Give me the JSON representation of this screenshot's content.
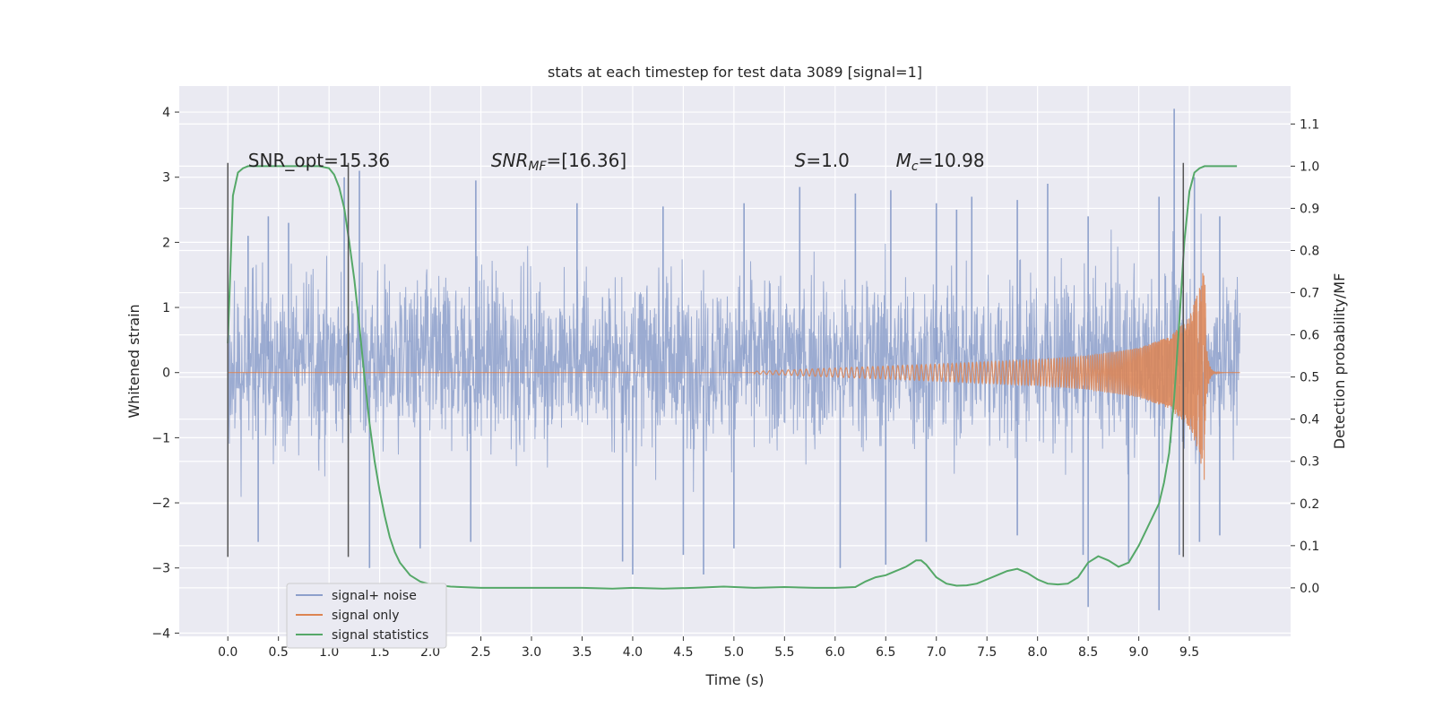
{
  "chart_data": {
    "type": "line",
    "title": "stats at each timestep for test data 3089 [signal=1]",
    "xlabel": "Time (s)",
    "ylabel": "Whitened strain",
    "ylabel_right": "Detection probability/MF",
    "xlim": [
      -0.48,
      10.5
    ],
    "ylim": [
      -4.05,
      4.4
    ],
    "ylim_right": [
      -0.115,
      1.19
    ],
    "xticks": [
      0.0,
      0.5,
      1.0,
      1.5,
      2.0,
      2.5,
      3.0,
      3.5,
      4.0,
      4.5,
      5.0,
      5.5,
      6.0,
      6.5,
      7.0,
      7.5,
      8.0,
      8.5,
      9.0,
      9.5
    ],
    "xtick_labels": [
      "0.0",
      "0.5",
      "1.0",
      "1.5",
      "2.0",
      "2.5",
      "3.0",
      "3.5",
      "4.0",
      "4.5",
      "5.0",
      "5.5",
      "6.0",
      "6.5",
      "7.0",
      "7.5",
      "8.0",
      "8.5",
      "9.0",
      "9.5"
    ],
    "yticks": [
      4,
      3,
      2,
      1,
      0,
      -1,
      -2,
      -3,
      -4
    ],
    "ytick_labels": [
      "4",
      "3",
      "2",
      "1",
      "0",
      "−1",
      "−2",
      "−3",
      "−4"
    ],
    "yticks_right": [
      1.1,
      1.0,
      0.9,
      0.8,
      0.7,
      0.6,
      0.5,
      0.4,
      0.3,
      0.2,
      0.1,
      0.0
    ],
    "ytick_labels_right": [
      "1.1",
      "1.0",
      "0.9",
      "0.8",
      "0.7",
      "0.6",
      "0.5",
      "0.4",
      "0.3",
      "0.2",
      "0.1",
      "0.0"
    ],
    "grid": true,
    "legend_position": "bottom-left",
    "colors": {
      "background": "#eaeaf2",
      "grid": "#ffffff",
      "noise": "#8da0cb",
      "signal": "#dd8452",
      "stats": "#55a868",
      "vline": "#555555"
    },
    "annotations": [
      {
        "parts": [
          {
            "text": "SNR_opt=15.36",
            "style": "normal"
          }
        ],
        "x": 0.2,
        "y": 3.2
      },
      {
        "parts": [
          {
            "text": "SNR",
            "style": "italic"
          },
          {
            "text": "MF",
            "style": "italic-sub"
          },
          {
            "text": "=[16.36]",
            "style": "normal"
          }
        ],
        "x": 2.6,
        "y": 3.2
      },
      {
        "parts": [
          {
            "text": "S",
            "style": "italic"
          },
          {
            "text": "=1.0",
            "style": "normal"
          }
        ],
        "x": 5.6,
        "y": 3.2
      },
      {
        "parts": [
          {
            "text": "M",
            "style": "italic"
          },
          {
            "text": "c",
            "style": "italic-sub"
          },
          {
            "text": "=10.98",
            "style": "normal"
          }
        ],
        "x": 6.6,
        "y": 3.2
      }
    ],
    "vlines": [
      {
        "x": 0.0,
        "y_from": -2.83,
        "y_to": 3.22
      },
      {
        "x": 1.19,
        "y_from": -2.83,
        "y_to": 3.22
      },
      {
        "x": 9.44,
        "y_from": -2.83,
        "y_to": 3.22
      }
    ],
    "series": [
      {
        "name": "signal+ noise",
        "kind": "noise",
        "duration": 10.0,
        "typical_envelope": [
          -1.0,
          1.4
        ],
        "peaks_x": [
          0.2,
          0.4,
          0.6,
          1.15,
          1.3,
          2.45,
          3.45,
          4.3,
          5.1,
          5.65,
          6.2,
          6.55,
          7.0,
          7.2,
          7.35,
          7.8,
          8.1,
          8.5,
          9.2,
          9.35,
          9.55,
          9.8
        ],
        "peaks_y": [
          2.1,
          2.4,
          2.3,
          3.0,
          3.1,
          2.95,
          2.6,
          2.55,
          2.6,
          2.85,
          2.75,
          2.8,
          2.6,
          2.5,
          2.7,
          2.65,
          2.9,
          2.4,
          2.7,
          4.05,
          3.0,
          2.4
        ],
        "troughs_x": [
          0.3,
          1.4,
          1.9,
          2.4,
          3.9,
          4.0,
          4.5,
          4.7,
          5.0,
          6.05,
          6.5,
          6.9,
          7.8,
          8.45,
          8.5,
          8.9,
          9.2,
          9.4,
          9.6,
          9.8
        ],
        "troughs_y": [
          -2.6,
          -3.0,
          -2.7,
          -2.6,
          -2.9,
          -3.1,
          -2.8,
          -3.1,
          -2.7,
          -3.0,
          -2.95,
          -2.6,
          -2.5,
          -2.8,
          -3.6,
          -2.9,
          -3.65,
          -2.8,
          -2.6,
          -2.5
        ]
      },
      {
        "name": "signal only",
        "kind": "chirp",
        "t_start": 5.2,
        "t_merge": 9.66,
        "t_end": 10.0,
        "amp_x": [
          5.2,
          6.0,
          7.0,
          8.0,
          8.5,
          9.0,
          9.3,
          9.5,
          9.6,
          9.66
        ],
        "amp_y": [
          0.02,
          0.07,
          0.13,
          0.2,
          0.26,
          0.38,
          0.55,
          0.85,
          1.3,
          1.75
        ]
      },
      {
        "name": "signal statistics",
        "kind": "stats",
        "axis": "right",
        "x": [
          0.0,
          0.05,
          0.1,
          0.15,
          0.2,
          0.3,
          0.5,
          0.7,
          0.9,
          1.0,
          1.05,
          1.1,
          1.15,
          1.2,
          1.25,
          1.3,
          1.35,
          1.4,
          1.45,
          1.5,
          1.55,
          1.6,
          1.65,
          1.7,
          1.8,
          1.9,
          2.0,
          2.2,
          2.5,
          3.0,
          3.5,
          3.8,
          4.0,
          4.3,
          4.6,
          4.9,
          5.2,
          5.5,
          5.8,
          6.0,
          6.2,
          6.3,
          6.4,
          6.5,
          6.6,
          6.7,
          6.8,
          6.85,
          6.9,
          6.95,
          7.0,
          7.1,
          7.2,
          7.3,
          7.4,
          7.5,
          7.6,
          7.7,
          7.8,
          7.9,
          8.0,
          8.1,
          8.2,
          8.3,
          8.4,
          8.5,
          8.6,
          8.7,
          8.8,
          8.9,
          9.0,
          9.1,
          9.2,
          9.25,
          9.3,
          9.35,
          9.4,
          9.45,
          9.5,
          9.55,
          9.6,
          9.65,
          9.7,
          9.8,
          9.9,
          9.97
        ],
        "y": [
          0.58,
          0.93,
          0.985,
          0.995,
          1.0,
          1.0,
          1.0,
          1.0,
          1.0,
          0.995,
          0.98,
          0.95,
          0.9,
          0.82,
          0.73,
          0.62,
          0.5,
          0.39,
          0.3,
          0.23,
          0.17,
          0.12,
          0.085,
          0.06,
          0.03,
          0.015,
          0.008,
          0.003,
          0.0,
          0.0,
          0.0,
          -0.002,
          0.0,
          -0.002,
          0.0,
          0.003,
          0.0,
          0.002,
          0.0,
          0.0,
          0.002,
          0.015,
          0.025,
          0.03,
          0.04,
          0.05,
          0.065,
          0.065,
          0.055,
          0.04,
          0.025,
          0.01,
          0.005,
          0.006,
          0.01,
          0.02,
          0.03,
          0.04,
          0.045,
          0.035,
          0.02,
          0.01,
          0.008,
          0.01,
          0.025,
          0.06,
          0.075,
          0.065,
          0.05,
          0.06,
          0.1,
          0.15,
          0.2,
          0.25,
          0.32,
          0.45,
          0.63,
          0.82,
          0.94,
          0.985,
          0.995,
          1.0,
          1.0,
          1.0,
          1.0,
          1.0
        ]
      }
    ]
  }
}
